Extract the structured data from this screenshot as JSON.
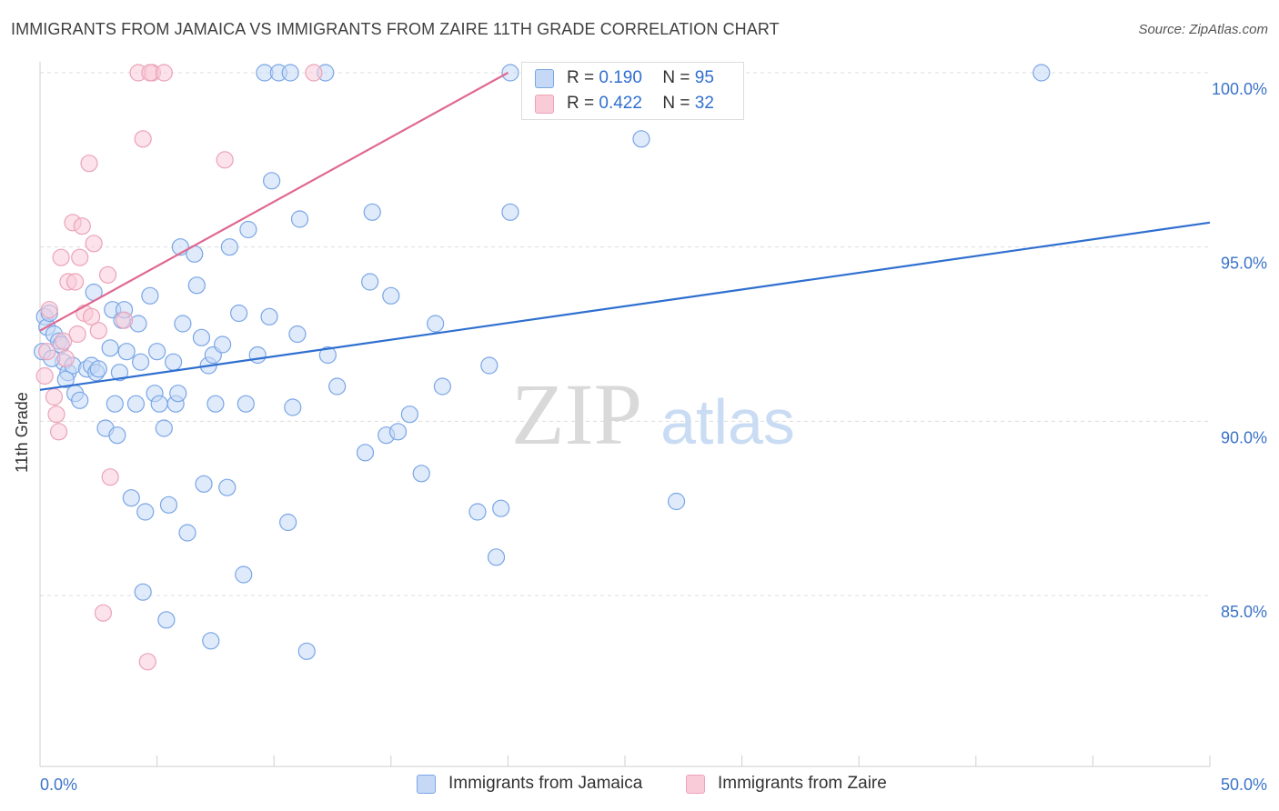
{
  "title": "IMMIGRANTS FROM JAMAICA VS IMMIGRANTS FROM ZAIRE 11TH GRADE CORRELATION CHART",
  "source": "Source: ZipAtlas.com",
  "watermark": {
    "zip": "ZIP",
    "atlas": "atlas"
  },
  "legend": {
    "rows": [
      {
        "r_label": "R =",
        "r_value": "0.190",
        "n_label": "N =",
        "n_value": "95"
      },
      {
        "r_label": "R =",
        "r_value": "0.422",
        "n_label": "N =",
        "n_value": "32"
      }
    ]
  },
  "bottom_legend": {
    "jamaica": "Immigrants from Jamaica",
    "zaire": "Immigrants from Zaire"
  },
  "colors": {
    "blue_fill": "#c5d9f6",
    "blue_stroke": "#7aa6e6",
    "blue_line": "#2f6fd0",
    "pink_fill": "#f9cbd8",
    "pink_stroke": "#eba3b8",
    "pink_line": "#e06890",
    "axis_label": "#3b73c8"
  },
  "chart_data": {
    "type": "scatter",
    "title": "IMMIGRANTS FROM JAMAICA VS IMMIGRANTS FROM ZAIRE 11TH GRADE CORRELATION CHART",
    "xlabel": "",
    "ylabel": "11th Grade",
    "xlim": [
      0,
      50
    ],
    "ylim": [
      80.5,
      100.5
    ],
    "x_tick_labels": [
      "0.0%",
      "50.0%"
    ],
    "y_ticks": [
      {
        "value": 85,
        "label": "85.0%"
      },
      {
        "value": 90,
        "label": "90.0%"
      },
      {
        "value": 95,
        "label": "95.0%"
      },
      {
        "value": 100,
        "label": "100.0%"
      }
    ],
    "series": [
      {
        "name": "Immigrants from Jamaica",
        "r": 0.19,
        "n": 95,
        "trend": {
          "x": [
            0,
            50
          ],
          "y": [
            90.9,
            95.7
          ]
        },
        "points": [
          [
            0.2,
            93.0
          ],
          [
            0.3,
            92.7
          ],
          [
            0.4,
            93.1
          ],
          [
            0.6,
            92.5
          ],
          [
            0.8,
            92.3
          ],
          [
            1.0,
            91.7
          ],
          [
            0.9,
            92.2
          ],
          [
            1.2,
            91.4
          ],
          [
            1.4,
            91.6
          ],
          [
            1.5,
            90.8
          ],
          [
            1.7,
            90.6
          ],
          [
            2.0,
            91.5
          ],
          [
            2.2,
            91.6
          ],
          [
            2.4,
            91.4
          ],
          [
            2.5,
            91.5
          ],
          [
            2.3,
            93.7
          ],
          [
            2.8,
            89.8
          ],
          [
            3.0,
            92.1
          ],
          [
            3.1,
            93.2
          ],
          [
            3.3,
            89.6
          ],
          [
            3.2,
            90.5
          ],
          [
            3.5,
            92.9
          ],
          [
            3.6,
            93.2
          ],
          [
            3.7,
            92.0
          ],
          [
            3.9,
            87.8
          ],
          [
            4.2,
            92.8
          ],
          [
            4.1,
            90.5
          ],
          [
            4.3,
            91.7
          ],
          [
            4.5,
            87.4
          ],
          [
            4.4,
            85.1
          ],
          [
            4.7,
            93.6
          ],
          [
            4.9,
            90.8
          ],
          [
            5.0,
            92.0
          ],
          [
            5.1,
            90.5
          ],
          [
            5.3,
            89.8
          ],
          [
            5.4,
            84.3
          ],
          [
            5.5,
            87.6
          ],
          [
            5.7,
            91.7
          ],
          [
            5.8,
            90.5
          ],
          [
            5.9,
            90.8
          ],
          [
            6.0,
            95.0
          ],
          [
            6.1,
            92.8
          ],
          [
            6.3,
            86.8
          ],
          [
            6.6,
            94.8
          ],
          [
            6.7,
            93.9
          ],
          [
            6.9,
            92.4
          ],
          [
            7.0,
            88.2
          ],
          [
            7.2,
            91.6
          ],
          [
            7.3,
            83.7
          ],
          [
            7.4,
            91.9
          ],
          [
            7.5,
            90.5
          ],
          [
            7.8,
            92.2
          ],
          [
            8.0,
            88.1
          ],
          [
            8.1,
            95.0
          ],
          [
            8.5,
            93.1
          ],
          [
            8.7,
            85.6
          ],
          [
            8.8,
            90.5
          ],
          [
            8.9,
            95.5
          ],
          [
            9.3,
            91.9
          ],
          [
            9.6,
            100.0
          ],
          [
            9.8,
            93.0
          ],
          [
            9.9,
            96.9
          ],
          [
            10.2,
            100.0
          ],
          [
            10.6,
            87.1
          ],
          [
            10.7,
            100.0
          ],
          [
            10.8,
            90.4
          ],
          [
            11.0,
            92.5
          ],
          [
            11.1,
            95.8
          ],
          [
            11.4,
            83.4
          ],
          [
            12.2,
            100.0
          ],
          [
            12.3,
            91.9
          ],
          [
            12.7,
            91.0
          ],
          [
            13.9,
            89.1
          ],
          [
            14.1,
            94.0
          ],
          [
            14.2,
            96.0
          ],
          [
            14.8,
            89.6
          ],
          [
            15.0,
            93.6
          ],
          [
            15.3,
            89.7
          ],
          [
            15.8,
            90.2
          ],
          [
            16.3,
            88.5
          ],
          [
            16.9,
            92.8
          ],
          [
            17.2,
            91.0
          ],
          [
            18.7,
            87.4
          ],
          [
            19.2,
            91.6
          ],
          [
            19.5,
            86.1
          ],
          [
            19.7,
            87.5
          ],
          [
            20.1,
            96.0
          ],
          [
            20.1,
            100.0
          ],
          [
            25.7,
            98.1
          ],
          [
            27.2,
            87.7
          ],
          [
            42.8,
            100.0
          ],
          [
            0.1,
            92.0
          ],
          [
            0.5,
            91.8
          ],
          [
            1.1,
            91.2
          ],
          [
            3.4,
            91.4
          ]
        ]
      },
      {
        "name": "Immigrants from Zaire",
        "r": 0.422,
        "n": 32,
        "trend": {
          "x": [
            0,
            20
          ],
          "y": [
            92.6,
            100.0
          ]
        },
        "points": [
          [
            0.2,
            91.3
          ],
          [
            0.3,
            92.0
          ],
          [
            0.4,
            93.2
          ],
          [
            0.6,
            90.7
          ],
          [
            0.7,
            90.2
          ],
          [
            0.8,
            89.7
          ],
          [
            0.9,
            94.7
          ],
          [
            1.0,
            92.3
          ],
          [
            1.1,
            91.8
          ],
          [
            1.2,
            94.0
          ],
          [
            1.4,
            95.7
          ],
          [
            1.5,
            94.0
          ],
          [
            1.6,
            92.5
          ],
          [
            1.7,
            94.7
          ],
          [
            1.8,
            95.6
          ],
          [
            1.9,
            93.1
          ],
          [
            2.1,
            97.4
          ],
          [
            2.2,
            93.0
          ],
          [
            2.3,
            95.1
          ],
          [
            2.5,
            92.6
          ],
          [
            2.7,
            84.5
          ],
          [
            2.9,
            94.2
          ],
          [
            3.0,
            88.4
          ],
          [
            3.6,
            92.9
          ],
          [
            4.2,
            100.0
          ],
          [
            4.4,
            98.1
          ],
          [
            4.8,
            100.0
          ],
          [
            4.7,
            100.0
          ],
          [
            4.6,
            83.1
          ],
          [
            5.3,
            100.0
          ],
          [
            7.9,
            97.5
          ],
          [
            11.7,
            100.0
          ]
        ]
      }
    ]
  }
}
